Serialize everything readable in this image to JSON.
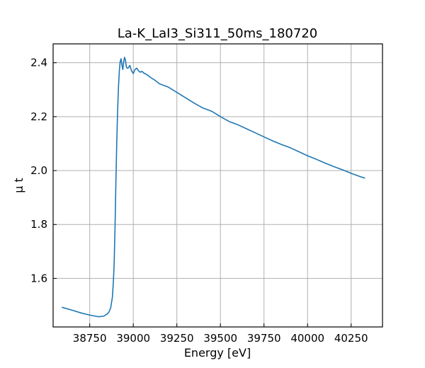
{
  "chart_data": {
    "type": "line",
    "title": "La-K_LaI3_Si311_50ms_180720",
    "xlabel": "Energy [eV]",
    "ylabel": "μ t",
    "xlim": [
      38540,
      40430
    ],
    "ylim": [
      1.42,
      2.47
    ],
    "xticks": [
      38750,
      39000,
      39250,
      39500,
      39750,
      40000,
      40250
    ],
    "yticks": [
      1.6,
      1.8,
      2.0,
      2.2,
      2.4
    ],
    "ytick_labels": [
      "1.6",
      "1.8",
      "2.0",
      "2.2",
      "2.4"
    ],
    "grid": true,
    "series": [
      {
        "color": "#1f77b4",
        "x": [
          38590,
          38650,
          38700,
          38750,
          38800,
          38830,
          38850,
          38860,
          38870,
          38880,
          38885,
          38890,
          38895,
          38900,
          38905,
          38910,
          38915,
          38920,
          38925,
          38930,
          38935,
          38940,
          38945,
          38950,
          38955,
          38960,
          38965,
          38970,
          38980,
          38990,
          39000,
          39010,
          39020,
          39030,
          39040,
          39050,
          39060,
          39080,
          39100,
          39120,
          39150,
          39200,
          39250,
          39300,
          39350,
          39400,
          39450,
          39500,
          39550,
          39600,
          39650,
          39700,
          39750,
          39800,
          39850,
          39900,
          39950,
          40000,
          40050,
          40100,
          40150,
          40200,
          40250,
          40300,
          40330
        ],
        "y": [
          1.493,
          1.482,
          1.472,
          1.464,
          1.458,
          1.46,
          1.468,
          1.475,
          1.49,
          1.53,
          1.58,
          1.65,
          1.78,
          1.95,
          2.1,
          2.22,
          2.31,
          2.37,
          2.405,
          2.415,
          2.39,
          2.375,
          2.405,
          2.42,
          2.41,
          2.385,
          2.38,
          2.38,
          2.39,
          2.37,
          2.36,
          2.375,
          2.38,
          2.37,
          2.365,
          2.368,
          2.362,
          2.355,
          2.345,
          2.337,
          2.322,
          2.31,
          2.29,
          2.27,
          2.25,
          2.232,
          2.22,
          2.2,
          2.182,
          2.17,
          2.155,
          2.14,
          2.125,
          2.11,
          2.097,
          2.085,
          2.07,
          2.055,
          2.042,
          2.028,
          2.015,
          2.003,
          1.99,
          1.978,
          1.972
        ]
      }
    ]
  }
}
